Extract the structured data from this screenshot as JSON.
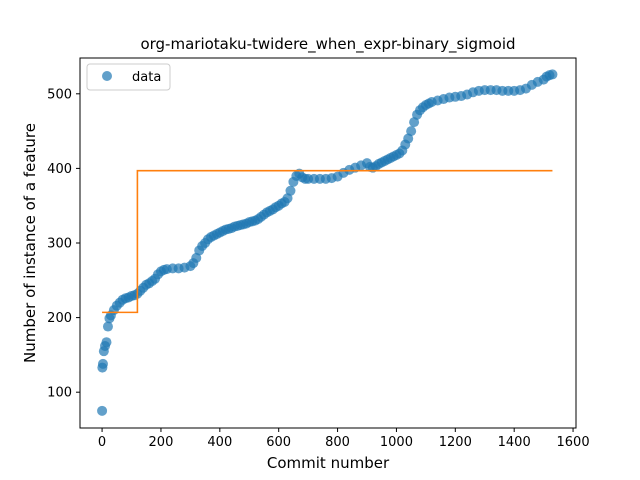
{
  "chart_data": {
    "type": "scatter",
    "title": "org-mariotaku-twidere_when_expr-binary_sigmoid",
    "xlabel": "Commit number",
    "ylabel": "Number of instance of a feature",
    "xlim": [
      -75,
      1610
    ],
    "ylim": [
      52,
      548
    ],
    "xticks": [
      0,
      200,
      400,
      600,
      800,
      1000,
      1200,
      1400,
      1600
    ],
    "yticks": [
      100,
      200,
      300,
      400,
      500
    ],
    "legend": {
      "placement": "top-left",
      "entries": [
        "data"
      ]
    },
    "colors": {
      "scatter": "#1f77b4",
      "fit": "#ff7f0e"
    },
    "series": [
      {
        "name": "data",
        "kind": "scatter",
        "points": [
          [
            0,
            75
          ],
          [
            1,
            133
          ],
          [
            3,
            138
          ],
          [
            6,
            155
          ],
          [
            10,
            162
          ],
          [
            15,
            167
          ],
          [
            20,
            188
          ],
          [
            25,
            199
          ],
          [
            30,
            203
          ],
          [
            40,
            210
          ],
          [
            50,
            216
          ],
          [
            60,
            220
          ],
          [
            70,
            224
          ],
          [
            80,
            226
          ],
          [
            90,
            227
          ],
          [
            100,
            229
          ],
          [
            110,
            230
          ],
          [
            120,
            232
          ],
          [
            130,
            236
          ],
          [
            140,
            240
          ],
          [
            150,
            244
          ],
          [
            160,
            246
          ],
          [
            170,
            249
          ],
          [
            180,
            252
          ],
          [
            190,
            258
          ],
          [
            200,
            262
          ],
          [
            210,
            264
          ],
          [
            220,
            265
          ],
          [
            240,
            266
          ],
          [
            260,
            266
          ],
          [
            280,
            267
          ],
          [
            300,
            269
          ],
          [
            310,
            273
          ],
          [
            320,
            280
          ],
          [
            330,
            290
          ],
          [
            340,
            296
          ],
          [
            350,
            300
          ],
          [
            360,
            305
          ],
          [
            370,
            308
          ],
          [
            380,
            310
          ],
          [
            390,
            312
          ],
          [
            400,
            314
          ],
          [
            410,
            316
          ],
          [
            420,
            318
          ],
          [
            430,
            319
          ],
          [
            440,
            320
          ],
          [
            450,
            322
          ],
          [
            460,
            323
          ],
          [
            470,
            324
          ],
          [
            480,
            325
          ],
          [
            490,
            326
          ],
          [
            500,
            328
          ],
          [
            510,
            329
          ],
          [
            520,
            330
          ],
          [
            530,
            332
          ],
          [
            540,
            335
          ],
          [
            550,
            338
          ],
          [
            560,
            341
          ],
          [
            570,
            343
          ],
          [
            580,
            345
          ],
          [
            590,
            348
          ],
          [
            600,
            350
          ],
          [
            610,
            353
          ],
          [
            620,
            355
          ],
          [
            630,
            360
          ],
          [
            640,
            370
          ],
          [
            650,
            382
          ],
          [
            660,
            390
          ],
          [
            670,
            393
          ],
          [
            680,
            388
          ],
          [
            690,
            386
          ],
          [
            700,
            386
          ],
          [
            720,
            386
          ],
          [
            740,
            386
          ],
          [
            760,
            386
          ],
          [
            780,
            387
          ],
          [
            800,
            389
          ],
          [
            820,
            394
          ],
          [
            840,
            398
          ],
          [
            860,
            401
          ],
          [
            880,
            404
          ],
          [
            900,
            407
          ],
          [
            910,
            402
          ],
          [
            920,
            401
          ],
          [
            930,
            403
          ],
          [
            940,
            406
          ],
          [
            950,
            408
          ],
          [
            960,
            410
          ],
          [
            970,
            412
          ],
          [
            980,
            414
          ],
          [
            990,
            416
          ],
          [
            1000,
            418
          ],
          [
            1010,
            420
          ],
          [
            1020,
            424
          ],
          [
            1030,
            432
          ],
          [
            1040,
            440
          ],
          [
            1050,
            450
          ],
          [
            1060,
            462
          ],
          [
            1070,
            472
          ],
          [
            1080,
            478
          ],
          [
            1090,
            482
          ],
          [
            1100,
            485
          ],
          [
            1110,
            487
          ],
          [
            1120,
            489
          ],
          [
            1140,
            491
          ],
          [
            1160,
            493
          ],
          [
            1180,
            495
          ],
          [
            1200,
            496
          ],
          [
            1220,
            497
          ],
          [
            1240,
            499
          ],
          [
            1260,
            502
          ],
          [
            1280,
            504
          ],
          [
            1300,
            505
          ],
          [
            1320,
            505
          ],
          [
            1340,
            505
          ],
          [
            1360,
            504
          ],
          [
            1380,
            504
          ],
          [
            1400,
            504
          ],
          [
            1420,
            505
          ],
          [
            1440,
            507
          ],
          [
            1460,
            512
          ],
          [
            1480,
            516
          ],
          [
            1500,
            519
          ],
          [
            1510,
            523
          ],
          [
            1520,
            525
          ],
          [
            1530,
            526
          ]
        ]
      },
      {
        "name": "",
        "kind": "step",
        "points": [
          [
            0,
            207
          ],
          [
            120,
            207
          ],
          [
            120,
            397
          ],
          [
            1530,
            397
          ]
        ]
      }
    ]
  }
}
